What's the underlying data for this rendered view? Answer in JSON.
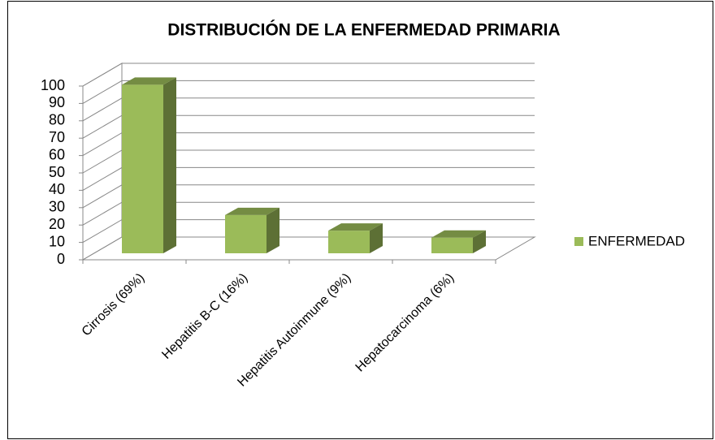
{
  "chart_data": {
    "type": "bar3d",
    "title": "DISTRIBUCIÓN DE LA ENFERMEDAD PRIMARIA",
    "categories": [
      "Cirrosis (69%)",
      "Hepatitis B-C (16%)",
      "Hepatitis Autoinmune (9%)",
      "Hepatocarcinoma (6%)"
    ],
    "series": [
      {
        "name": "ENFERMEDAD",
        "color": "#9bbb59",
        "values": [
          97,
          22,
          13,
          9
        ]
      }
    ],
    "ylim": [
      0,
      100
    ],
    "yticks": [
      0,
      10,
      20,
      30,
      40,
      50,
      60,
      70,
      80,
      90,
      100
    ],
    "grid": true,
    "legend": "right"
  }
}
